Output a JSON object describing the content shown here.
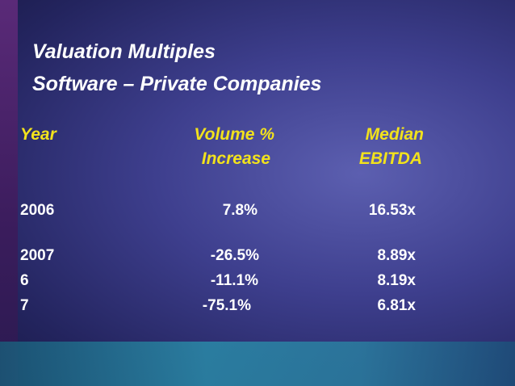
{
  "title": [
    "Valuation Multiples",
    "Software – Private Companies"
  ],
  "table": {
    "header": [
      [
        "Year"
      ],
      [
        "Volume %",
        "Increase"
      ],
      [
        "Median",
        "EBITDA"
      ]
    ],
    "rows": [
      [
        "2006",
        "7.8%",
        "16.53x"
      ],
      [
        "2007",
        "-26.5%",
        "8.89x"
      ],
      [
        "6",
        "-11.1%",
        "8.19x"
      ],
      [
        "7",
        "-75.1%",
        "6.81x"
      ]
    ]
  }
}
